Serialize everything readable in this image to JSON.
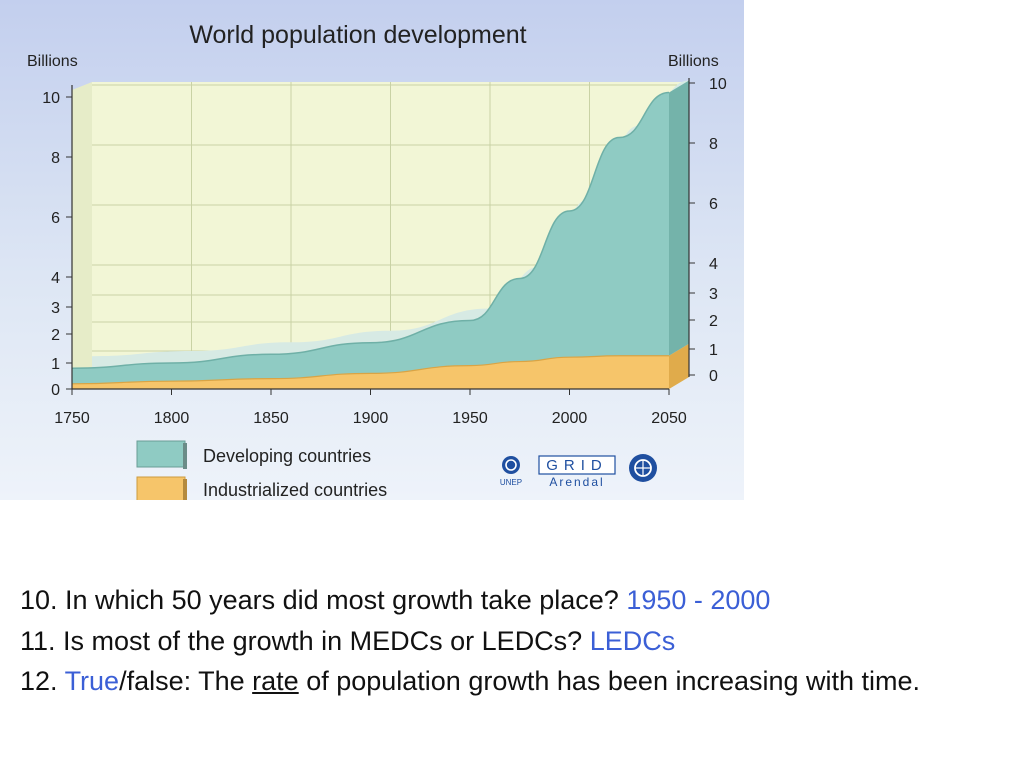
{
  "chart_data": {
    "type": "area",
    "title": "World population development",
    "ylabel_left": "Billions",
    "ylabel_right": "Billions",
    "stacked": true,
    "x": [
      1750,
      1800,
      1850,
      1900,
      1950,
      1975,
      2000,
      2025,
      2050
    ],
    "xticks": [
      "1750",
      "1800",
      "1850",
      "1900",
      "1950",
      "2000",
      "2050"
    ],
    "yticks_left": [
      "0",
      "1",
      "2",
      "3",
      "4",
      "6",
      "8",
      "10"
    ],
    "yticks_right": [
      "0",
      "1",
      "2",
      "3",
      "4",
      "6",
      "8",
      "10"
    ],
    "grid": true,
    "series": [
      {
        "name": "Industrialized countries",
        "values": [
          0.2,
          0.3,
          0.4,
          0.6,
          0.9,
          1.05,
          1.2,
          1.25,
          1.25
        ]
      },
      {
        "name": "Developing countries",
        "values": [
          0.6,
          0.7,
          0.9,
          1.1,
          1.6,
          2.9,
          5.0,
          7.4,
          8.9
        ]
      }
    ],
    "legend_position": "bottom-left",
    "colors": {
      "developing": "#8fcbc3",
      "industrialized": "#f6c56a",
      "background": "#f2f6d6",
      "panel_top": "#c7d2ee",
      "grid": "#c9d2a5"
    }
  },
  "logos": {
    "unep": "UNEP",
    "grid_text": "GRID",
    "arendal_text": "Arendal"
  },
  "questions": {
    "q10_text": "10. In which 50 years did most growth take place? ",
    "q10_answer": "1950 - 2000",
    "q11_text": "11. Is most of the growth in MEDCs or LEDCs? ",
    "q11_answer": "LEDCs",
    "q12_num": "12. ",
    "q12_answer": "True",
    "q12_mid": "/false: The ",
    "q12_rate": "rate",
    "q12_rest": " of population growth has been increasing with time."
  }
}
